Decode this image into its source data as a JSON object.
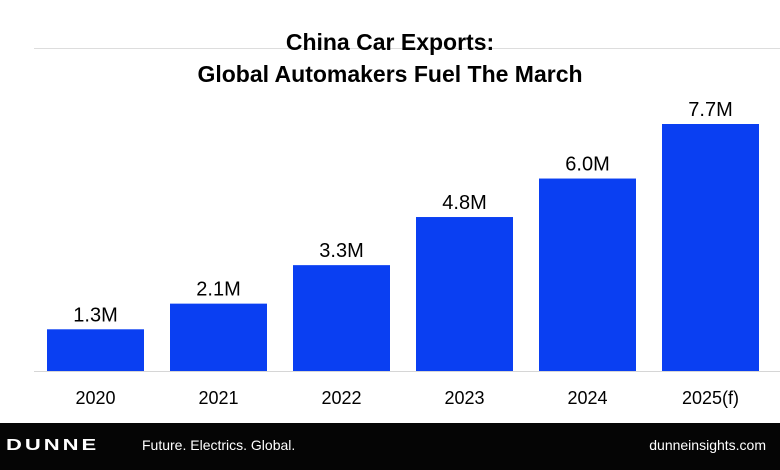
{
  "chart_data": {
    "type": "bar",
    "title": "China Car Exports:",
    "subtitle": "Global Automakers Fuel The March",
    "categories": [
      "2020",
      "2021",
      "2022",
      "2023",
      "2024",
      "2025(f)"
    ],
    "values": [
      1.3,
      2.1,
      3.3,
      4.8,
      6.0,
      7.7
    ],
    "value_labels": [
      "1.3M",
      "2.1M",
      "3.3M",
      "4.8M",
      "6.0M",
      "7.7M"
    ],
    "xlabel": "",
    "ylabel": "",
    "ylim": [
      0,
      7.7
    ],
    "grid": false,
    "bar_color": "#0a3ff2"
  },
  "footer": {
    "brand": "DUNNE",
    "tagline": "Future. Electrics. Global.",
    "website": "dunneinsights.com"
  }
}
